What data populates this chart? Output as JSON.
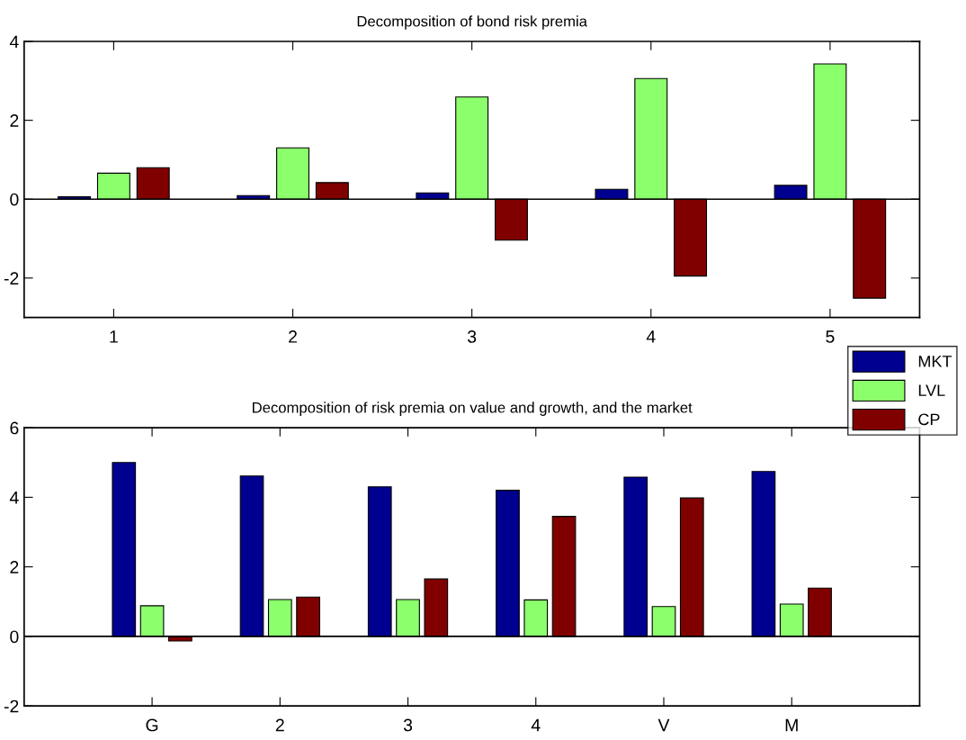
{
  "chart_data": [
    {
      "type": "bar",
      "title": "Decomposition of bond risk premia",
      "x": [
        1,
        2,
        3,
        4,
        5
      ],
      "xlim": [
        0.5,
        5.5
      ],
      "xticks": [
        1,
        2,
        3,
        4,
        5
      ],
      "ylim": [
        -3,
        4
      ],
      "yticks": [
        -2,
        0,
        2,
        4
      ],
      "grid": false,
      "ref_lines": [
        {
          "axis": "y",
          "value": 0,
          "color": "#000000"
        }
      ],
      "legend": false,
      "series": [
        {
          "color": "#000090",
          "values": [
            0.06,
            0.09,
            0.16,
            0.25,
            0.35
          ]
        },
        {
          "color": "#8cff6c",
          "values": [
            0.66,
            1.3,
            2.59,
            3.06,
            3.43
          ]
        },
        {
          "color": "#800000",
          "values": [
            0.8,
            0.42,
            -1.04,
            -1.95,
            -2.51
          ]
        }
      ]
    },
    {
      "type": "bar",
      "title": "Decomposition of risk premia on value and growth, and the market",
      "x": [
        1,
        2,
        3,
        4,
        5,
        6
      ],
      "xlim": [
        0,
        7
      ],
      "xticks": [
        {
          "value": 1,
          "label": "G"
        },
        2,
        3,
        4,
        {
          "value": 5,
          "label": "V"
        },
        {
          "value": 6,
          "label": "M"
        }
      ],
      "ylim": [
        -2,
        6
      ],
      "yticks": [
        -2,
        0,
        2,
        4,
        6
      ],
      "grid": false,
      "ref_lines": [
        {
          "axis": "y",
          "value": 0,
          "color": "#000000"
        }
      ],
      "legend": "top right",
      "series": [
        {
          "name": "MKT",
          "color": "#000090",
          "values": [
            5.0,
            4.61,
            4.3,
            4.2,
            4.58,
            4.74
          ]
        },
        {
          "name": "LVL",
          "color": "#8cff6c",
          "values": [
            0.88,
            1.06,
            1.06,
            1.05,
            0.86,
            0.93
          ]
        },
        {
          "name": "CP",
          "color": "#800000",
          "values": [
            -0.13,
            1.13,
            1.65,
            3.45,
            3.98,
            1.39
          ]
        }
      ]
    }
  ]
}
